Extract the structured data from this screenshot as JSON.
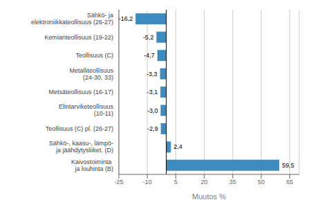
{
  "chart_data": {
    "type": "bar",
    "orientation": "horizontal",
    "categories": [
      "Sähkö- ja elektroniikkateollisuus (26-27)",
      "Kemianteollisuus (19-22)",
      "Teollisuus (C)",
      "Metalliteollisuus (24-30, 33)",
      "Metsäteollisuus (16-17)",
      "Elintarviketeollisuus (10-11)",
      "Teollisuus (C) pl. (26-27)",
      "Sähkö-, kaasu-, lämpö- ja jäähdytysliiket. (D)",
      "Kaivostoiminta  ja louhinta (B)"
    ],
    "values": [
      -16.2,
      -5.2,
      -4.7,
      -3.3,
      -3.1,
      -3.0,
      -2.9,
      2.4,
      59.5
    ],
    "value_labels": [
      "-16,2",
      "-5,2",
      "-4,7",
      "-3,3",
      "-3,1",
      "-3,0",
      "-2,9",
      "2,4",
      "59,5"
    ],
    "data_labels": true,
    "color": "#3d8bbf",
    "xlabel": "Muutos %",
    "xlim": [
      -25,
      70
    ],
    "xticks": [
      -25,
      -10,
      5,
      20,
      35,
      50,
      65
    ],
    "grid": true
  }
}
